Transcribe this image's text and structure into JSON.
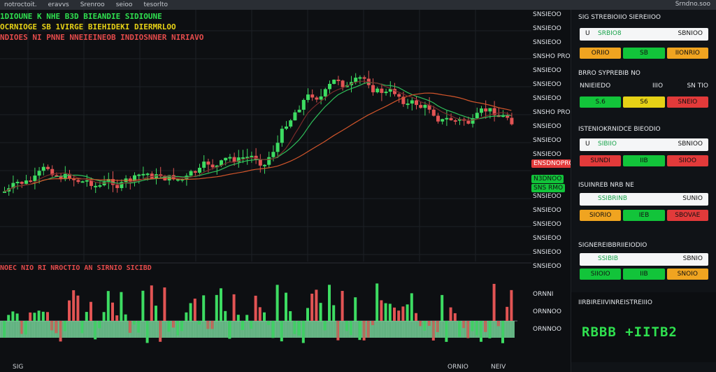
{
  "topbar": {
    "items": [
      "notroctoit.",
      "eravvs",
      "Srenroo",
      "seioo",
      "tesorlto"
    ],
    "right": "Srndno.soo"
  },
  "legend": {
    "line1": "1DIOUNE K NHE  B3D BIEANDIE   SIDIOUNE",
    "line2": "OCRNIOGE  SB  1VIRGE  BIEHIDEKI  DIERMRLOO",
    "line3": "NDIOES  NI  PNNE  NNEIEINEOB  INDIOSNNER  NIRIAVO"
  },
  "price_axis": [
    "SNSIEOO",
    "SNSIEOO",
    "SNSIEOO",
    "SNSHO PRO",
    "SNSIEOO",
    "SNSIEOO",
    "SNSIEOO",
    "SNSHO PRO",
    "SNSIEOO",
    "SNSIEOO",
    "SNSIEOO",
    "SNSIEOO",
    "SNSIEOO",
    "SNSIEOO",
    "SNSIEOO",
    "SNSIEOO",
    "SNSIEOO",
    "SNSIEOO"
  ],
  "tags": {
    "red": "ENSDNOPRO",
    "green": "N3DNOO",
    "green2": "SNS RMO"
  },
  "vol_axis": [
    "ORNNI",
    "ORNNOO",
    "ORNNOO"
  ],
  "vol_legend": "NOEC NIO  RI  NROCTIO AN  SIRNIO SICIBD",
  "bottom": {
    "left": "SIG",
    "right1": "ORNIO",
    "right2": "NEIV"
  },
  "panel": {
    "cards": [
      {
        "title": "SIG STREBIOIIO  SIEREIIOO",
        "a": "U",
        "b": "SRBIO8",
        "c": "SBNIOO",
        "btns": [
          "ORIIO",
          "SB",
          "IIONRIO"
        ],
        "colors": [
          "orange",
          "green",
          "orange"
        ]
      },
      {
        "title": "BRRO SYPREBIB  NO",
        "mid": [
          "NNIEIEDO",
          "IIIO",
          "SN TIO"
        ],
        "btns": [
          "S6",
          "SNEIO"
        ],
        "colors": [
          "green",
          "yellow",
          "red"
        ],
        "extra": "S.6"
      },
      {
        "title": "ISTENIOKRNIDCE  BIEODIO",
        "a": "U",
        "b": "SIBIIO",
        "c": "SBNIOO",
        "btns": [
          "SUNDI",
          "IIB",
          "SIIOO"
        ],
        "colors": [
          "red",
          "green",
          "red"
        ]
      },
      {
        "title": "ISUINREB  NRB  NE",
        "a": "",
        "b": "SSIBRINB",
        "c": "SUNIO",
        "btns": [
          "SIORIO",
          "IEB",
          "SBOVAE"
        ],
        "colors": [
          "orange",
          "green",
          "red"
        ]
      },
      {
        "title": "SIGNEREIBBRIIEIODIO",
        "a": "",
        "b": "SSIBIB",
        "c": "SBNIO",
        "btns": [
          "SIIOIO",
          "IIB",
          "SNOIO"
        ],
        "colors": [
          "green",
          "green",
          "orange"
        ]
      },
      {
        "title": "IIRBIREIIVINREISTREIIIO"
      }
    ],
    "big_text": "RBBB +IITB2"
  }
}
